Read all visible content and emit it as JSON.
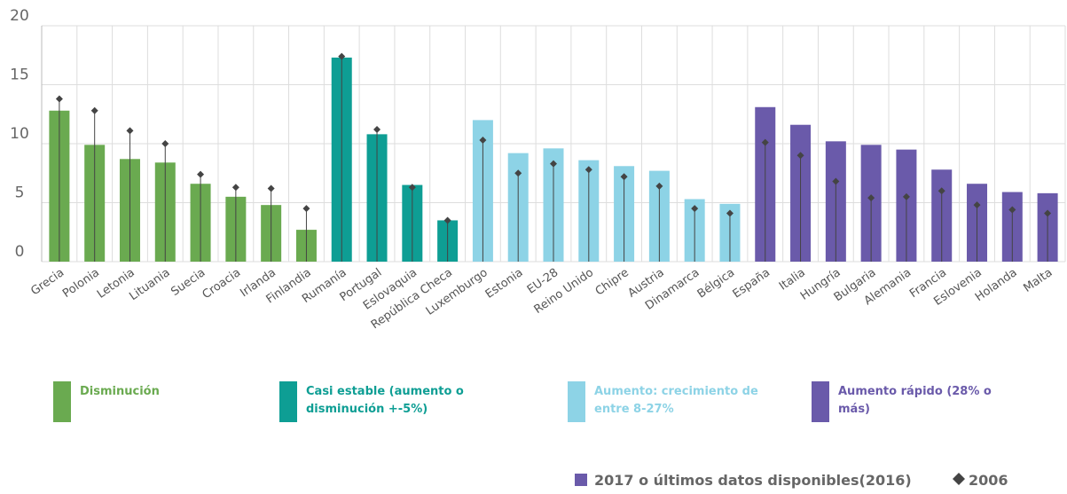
{
  "chart_data": {
    "type": "bar",
    "categories": [
      "Grecia",
      "Polonia",
      "Letonia",
      "Lituania",
      "Suecia",
      "Croacia",
      "Irlanda",
      "Finlandia",
      "Rumanía",
      "Portugal",
      "Eslovaquia",
      "República Checa",
      "Luxemburgo",
      "Estonia",
      "EU-28",
      "Reino Unido",
      "Chipre",
      "Austria",
      "Dinamarca",
      "Bélgica",
      "España",
      "Italia",
      "Hungría",
      "Bulgaria",
      "Alemania",
      "Francia",
      "Eslovenia",
      "Holanda",
      "Malta"
    ],
    "series": [
      {
        "name": "2017 o últimos datos disponibles(2016)",
        "color": "#6a5aaa",
        "colors": [
          "#6aaa50",
          "#6aaa50",
          "#6aaa50",
          "#6aaa50",
          "#6aaa50",
          "#6aaa50",
          "#6aaa50",
          "#6aaa50",
          "#0e9e94",
          "#0e9e94",
          "#0e9e94",
          "#0e9e94",
          "#8dd3e6",
          "#8dd3e6",
          "#8dd3e6",
          "#8dd3e6",
          "#8dd3e6",
          "#8dd3e6",
          "#8dd3e6",
          "#8dd3e6",
          "#6a5aaa",
          "#6a5aaa",
          "#6a5aaa",
          "#6a5aaa",
          "#6a5aaa",
          "#6a5aaa",
          "#6a5aaa",
          "#6a5aaa",
          "#6a5aaa"
        ],
        "values": [
          12.8,
          9.9,
          8.7,
          8.4,
          6.6,
          5.5,
          4.8,
          2.7,
          17.3,
          10.8,
          6.5,
          3.5,
          12.0,
          9.2,
          9.6,
          8.6,
          8.1,
          7.7,
          5.3,
          4.9,
          13.1,
          11.6,
          10.2,
          9.9,
          9.5,
          7.8,
          6.6,
          5.9,
          5.8
        ]
      },
      {
        "name": "2006",
        "color": "#444444",
        "marker": "diamond",
        "values": [
          13.8,
          12.8,
          11.1,
          10.0,
          7.4,
          6.3,
          6.2,
          4.5,
          17.4,
          11.2,
          6.3,
          3.5,
          10.3,
          7.5,
          8.3,
          7.8,
          7.2,
          6.4,
          4.5,
          4.1,
          10.1,
          9.0,
          6.8,
          5.4,
          5.5,
          6.0,
          4.8,
          4.4,
          4.1
        ]
      }
    ],
    "groups": [
      {
        "name": "Disminución",
        "color": "#6aaa50"
      },
      {
        "name": "Casi estable (aumento o disminución +-5%)",
        "color": "#0e9e94"
      },
      {
        "name": "Aumento: crecimiento de entre 8-27%",
        "color": "#8dd3e6"
      },
      {
        "name": "Aumento rápido (28% o más)",
        "color": "#6a5aaa"
      }
    ],
    "ylim": [
      0,
      20
    ],
    "yticks": [
      0,
      5,
      10,
      15,
      20
    ],
    "grid": true
  }
}
